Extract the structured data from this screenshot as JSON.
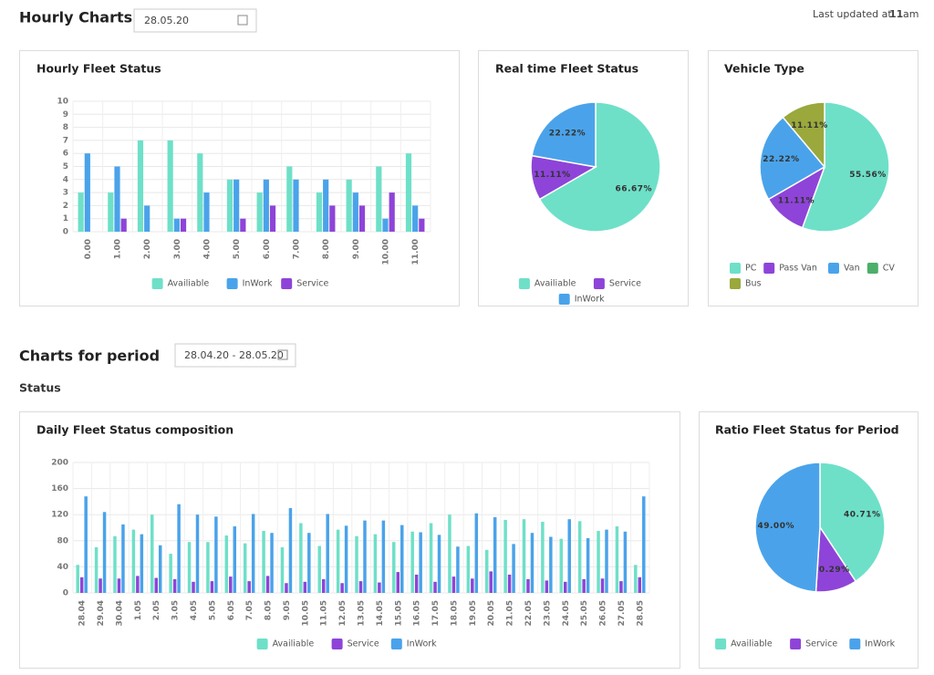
{
  "header": {
    "title": "Hourly Charts",
    "date": "28.05.20",
    "updated_prefix": "Last updated at",
    "updated_hour": "11",
    "updated_suffix": "am"
  },
  "period": {
    "title": "Charts for period",
    "date_range": "28.04.20 - 28.05.20",
    "section": "Status"
  },
  "chart_data": [
    {
      "type": "bar",
      "title": "Hourly Fleet Status",
      "categories": [
        "0.00",
        "1.00",
        "2.00",
        "3.00",
        "4.00",
        "5.00",
        "6.00",
        "7.00",
        "8.00",
        "9.00",
        "10.00",
        "11.00"
      ],
      "series": [
        {
          "name": "Availiable",
          "color": "#6ee0c8",
          "values": [
            3,
            3,
            7,
            7,
            6,
            4,
            3,
            5,
            3,
            4,
            5,
            6
          ]
        },
        {
          "name": "InWork",
          "color": "#4aa3ea",
          "values": [
            6,
            5,
            2,
            1,
            3,
            4,
            4,
            4,
            4,
            3,
            1,
            2
          ]
        },
        {
          "name": "Service",
          "color": "#8e44d8",
          "values": [
            0,
            1,
            0,
            1,
            0,
            1,
            2,
            0,
            2,
            2,
            3,
            1
          ]
        }
      ],
      "ylim": [
        0,
        10
      ],
      "yticks": [
        0,
        1,
        2,
        3,
        4,
        5,
        6,
        7,
        8,
        9,
        10
      ],
      "grid": true,
      "legend": "bottom"
    },
    {
      "type": "pie",
      "title": "Real time Fleet Status",
      "categories": [
        "Availiable",
        "Service",
        "InWork"
      ],
      "values": [
        66.67,
        11.11,
        22.22
      ],
      "value_labels": [
        "66.67%",
        "11.11%",
        "22.22%"
      ],
      "colors": [
        "#6ee0c8",
        "#8e44d8",
        "#4aa3ea"
      ],
      "legend": "bottom"
    },
    {
      "type": "pie",
      "title": "Vehicle Type",
      "categories": [
        "PC",
        "Pass Van",
        "Van",
        "CV",
        "Bus"
      ],
      "values": [
        55.56,
        11.11,
        22.22,
        0,
        11.11
      ],
      "value_labels": [
        "55.56%",
        "11.11%",
        "22.22%",
        null,
        "11.11%"
      ],
      "colors": [
        "#6ee0c8",
        "#8e44d8",
        "#4aa3ea",
        "#4caf6a",
        "#9aa83c"
      ],
      "legend": "bottom"
    },
    {
      "type": "bar",
      "title": "Daily Fleet Status composition",
      "categories": [
        "28.04",
        "29.04",
        "30.04",
        "1.05",
        "2.05",
        "3.05",
        "4.05",
        "5.05",
        "6.05",
        "7.05",
        "8.05",
        "9.05",
        "10.05",
        "11.05",
        "12.05",
        "13.05",
        "14.05",
        "15.05",
        "16.05",
        "17.05",
        "18.05",
        "19.05",
        "20.05",
        "21.05",
        "22.05",
        "23.05",
        "24.05",
        "25.05",
        "26.05",
        "27.05",
        "28.05"
      ],
      "series": [
        {
          "name": "Availiable",
          "color": "#6ee0c8",
          "values": [
            43,
            70,
            87,
            97,
            120,
            60,
            78,
            78,
            88,
            76,
            95,
            70,
            107,
            72,
            97,
            87,
            90,
            78,
            94,
            107,
            120,
            72,
            66,
            112,
            113,
            109,
            83,
            110,
            95,
            102,
            43
          ]
        },
        {
          "name": "Service",
          "color": "#8e44d8",
          "values": [
            24,
            22,
            22,
            26,
            23,
            21,
            17,
            18,
            25,
            18,
            26,
            15,
            17,
            21,
            15,
            18,
            16,
            32,
            28,
            17,
            25,
            22,
            33,
            28,
            21,
            19,
            17,
            21,
            22,
            18,
            24
          ]
        },
        {
          "name": "InWork",
          "color": "#4aa3ea",
          "values": [
            148,
            124,
            105,
            90,
            73,
            136,
            120,
            117,
            102,
            121,
            92,
            130,
            92,
            121,
            103,
            111,
            111,
            104,
            93,
            89,
            71,
            122,
            116,
            75,
            92,
            86,
            113,
            84,
            97,
            94,
            148
          ]
        }
      ],
      "ylim": [
        0,
        200
      ],
      "yticks": [
        0,
        40,
        80,
        120,
        160,
        200
      ],
      "grid": true,
      "legend": "bottom"
    },
    {
      "type": "pie",
      "title": "Ratio Fleet Status for Period",
      "categories": [
        "Availiable",
        "Service",
        "InWork"
      ],
      "values": [
        40.71,
        10.29,
        49.0
      ],
      "value_labels": [
        "40.71%",
        "10.29%",
        "49.00%"
      ],
      "colors": [
        "#6ee0c8",
        "#8e44d8",
        "#4aa3ea"
      ],
      "legend": "bottom"
    }
  ]
}
